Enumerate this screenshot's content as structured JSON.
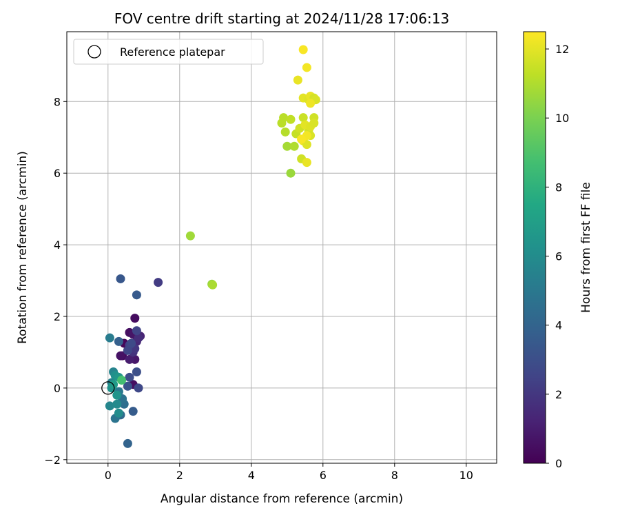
{
  "chart_data": {
    "type": "scatter",
    "title": "FOV centre drift starting at 2024/11/28 17:06:13",
    "xlabel": "Angular distance from reference (arcmin)",
    "ylabel": "Rotation from reference (arcmin)",
    "xlim": [
      -1.15,
      10.85
    ],
    "ylim": [
      -2.1,
      9.95
    ],
    "xticks": [
      0,
      2,
      4,
      6,
      8,
      10
    ],
    "yticks": [
      -2,
      0,
      2,
      4,
      6,
      8
    ],
    "xtick_labels": [
      "0",
      "2",
      "4",
      "6",
      "8",
      "10"
    ],
    "ytick_labels": [
      "−2",
      "0",
      "2",
      "4",
      "6",
      "8"
    ],
    "grid": true,
    "legend": {
      "position": "top-left",
      "entries": [
        "Reference platepar"
      ]
    },
    "reference_point": {
      "x": 0,
      "y": 0,
      "label": "Reference platepar",
      "marker": "open-circle"
    },
    "colorbar": {
      "label": "Hours from first FF file",
      "range": [
        0,
        12.5
      ],
      "ticks": [
        0,
        2,
        4,
        6,
        8,
        10,
        12
      ],
      "tick_labels": [
        "0",
        "2",
        "4",
        "6",
        "8",
        "10",
        "12"
      ],
      "colormap": "viridis"
    },
    "points": [
      {
        "x": 0.45,
        "y": 1.25,
        "t": 0.2
      },
      {
        "x": 0.6,
        "y": 1.55,
        "t": 0.5
      },
      {
        "x": 0.75,
        "y": 1.95,
        "t": 0.4
      },
      {
        "x": 0.7,
        "y": 1.5,
        "t": 0.7
      },
      {
        "x": 0.4,
        "y": 0.9,
        "t": 0.3
      },
      {
        "x": 0.35,
        "y": 0.9,
        "t": 0.6
      },
      {
        "x": 0.75,
        "y": 0.8,
        "t": 0.8
      },
      {
        "x": 0.6,
        "y": 0.8,
        "t": 1.0
      },
      {
        "x": 0.7,
        "y": 0.1,
        "t": 0.5
      },
      {
        "x": 0.9,
        "y": 1.45,
        "t": 1.2
      },
      {
        "x": 0.8,
        "y": 1.3,
        "t": 1.4
      },
      {
        "x": 0.85,
        "y": 1.4,
        "t": 1.6
      },
      {
        "x": 0.7,
        "y": 1.0,
        "t": 1.8
      },
      {
        "x": 0.75,
        "y": 1.1,
        "t": 2.0
      },
      {
        "x": 1.4,
        "y": 2.95,
        "t": 2.2
      },
      {
        "x": 0.6,
        "y": 1.2,
        "t": 2.4
      },
      {
        "x": 0.55,
        "y": 1.05,
        "t": 2.6
      },
      {
        "x": 0.65,
        "y": 1.25,
        "t": 2.8
      },
      {
        "x": 0.8,
        "y": 1.6,
        "t": 2.5
      },
      {
        "x": 0.8,
        "y": 0.45,
        "t": 3.0
      },
      {
        "x": 0.85,
        "y": 0.0,
        "t": 2.7
      },
      {
        "x": 0.6,
        "y": 0.3,
        "t": 2.9
      },
      {
        "x": 0.55,
        "y": 0.05,
        "t": 3.2
      },
      {
        "x": 0.35,
        "y": 3.05,
        "t": 3.4
      },
      {
        "x": 0.8,
        "y": 2.6,
        "t": 3.5
      },
      {
        "x": 0.7,
        "y": -0.65,
        "t": 3.6
      },
      {
        "x": 0.3,
        "y": 1.3,
        "t": 3.8
      },
      {
        "x": 0.55,
        "y": -1.55,
        "t": 4.0
      },
      {
        "x": 0.35,
        "y": -0.75,
        "t": 4.3
      },
      {
        "x": 0.45,
        "y": -0.45,
        "t": 4.5
      },
      {
        "x": 0.4,
        "y": -0.3,
        "t": 4.7
      },
      {
        "x": 0.2,
        "y": -0.85,
        "t": 4.8
      },
      {
        "x": 0.3,
        "y": -0.1,
        "t": 5.0
      },
      {
        "x": 0.05,
        "y": 1.4,
        "t": 5.2
      },
      {
        "x": 0.1,
        "y": 0.15,
        "t": 5.4
      },
      {
        "x": 0.15,
        "y": 0.45,
        "t": 5.6
      },
      {
        "x": 0.05,
        "y": -0.5,
        "t": 5.7
      },
      {
        "x": 0.25,
        "y": -0.45,
        "t": 5.9
      },
      {
        "x": 0.3,
        "y": -0.7,
        "t": 6.0
      },
      {
        "x": 0.2,
        "y": 0.35,
        "t": 6.2
      },
      {
        "x": 0.1,
        "y": 0.0,
        "t": 6.3
      },
      {
        "x": 0.3,
        "y": 0.3,
        "t": 6.5
      },
      {
        "x": 0.25,
        "y": -0.2,
        "t": 6.4
      },
      {
        "x": 0.15,
        "y": 0.1,
        "t": 6.8
      },
      {
        "x": 0.38,
        "y": 0.22,
        "t": 8.7
      },
      {
        "x": 2.3,
        "y": 4.25,
        "t": 10.7
      },
      {
        "x": 2.9,
        "y": 2.9,
        "t": 10.5
      },
      {
        "x": 2.92,
        "y": 2.88,
        "t": 10.9
      },
      {
        "x": 5.1,
        "y": 6.0,
        "t": 10.6
      },
      {
        "x": 5.0,
        "y": 6.75,
        "t": 10.8
      },
      {
        "x": 5.2,
        "y": 6.75,
        "t": 11.0
      },
      {
        "x": 4.95,
        "y": 7.15,
        "t": 11.1
      },
      {
        "x": 4.85,
        "y": 7.4,
        "t": 11.2
      },
      {
        "x": 4.9,
        "y": 7.55,
        "t": 11.2
      },
      {
        "x": 5.1,
        "y": 7.5,
        "t": 11.3
      },
      {
        "x": 5.25,
        "y": 7.1,
        "t": 11.4
      },
      {
        "x": 5.4,
        "y": 6.4,
        "t": 11.6
      },
      {
        "x": 5.55,
        "y": 6.3,
        "t": 12.1
      },
      {
        "x": 5.45,
        "y": 6.9,
        "t": 12.2
      },
      {
        "x": 5.55,
        "y": 6.8,
        "t": 11.9
      },
      {
        "x": 5.65,
        "y": 7.05,
        "t": 11.8
      },
      {
        "x": 5.6,
        "y": 7.2,
        "t": 11.7
      },
      {
        "x": 5.35,
        "y": 7.25,
        "t": 11.6
      },
      {
        "x": 5.45,
        "y": 7.55,
        "t": 11.5
      },
      {
        "x": 5.5,
        "y": 7.35,
        "t": 12.0
      },
      {
        "x": 5.65,
        "y": 7.3,
        "t": 11.9
      },
      {
        "x": 5.75,
        "y": 7.55,
        "t": 11.6
      },
      {
        "x": 5.75,
        "y": 7.4,
        "t": 11.8
      },
      {
        "x": 5.55,
        "y": 7.05,
        "t": 12.3
      },
      {
        "x": 5.45,
        "y": 8.1,
        "t": 12.0
      },
      {
        "x": 5.6,
        "y": 8.05,
        "t": 11.9
      },
      {
        "x": 5.65,
        "y": 8.15,
        "t": 12.1
      },
      {
        "x": 5.75,
        "y": 8.1,
        "t": 11.7
      },
      {
        "x": 5.8,
        "y": 8.05,
        "t": 11.8
      },
      {
        "x": 5.65,
        "y": 7.95,
        "t": 12.2
      },
      {
        "x": 5.3,
        "y": 8.6,
        "t": 12.1
      },
      {
        "x": 5.55,
        "y": 8.95,
        "t": 12.3
      },
      {
        "x": 5.45,
        "y": 9.45,
        "t": 12.4
      },
      {
        "x": 5.4,
        "y": 6.95,
        "t": 12.4
      }
    ]
  }
}
